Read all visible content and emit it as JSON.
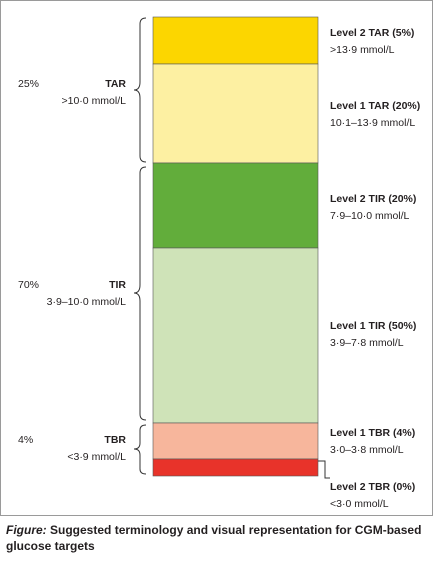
{
  "left_groups": [
    {
      "percent": "25%",
      "label": "TAR",
      "range": ">10·0 mmol/L"
    },
    {
      "percent": "70%",
      "label": "TIR",
      "range": "3·9–10·0 mmol/L"
    },
    {
      "percent": "4%",
      "label": "TBR",
      "range": "<3·9 mmol/L"
    }
  ],
  "levels": [
    {
      "label": "Level 2 TAR (5%)",
      "range": ">13·9 mmol/L"
    },
    {
      "label": "Level 1 TAR (20%)",
      "range": "10·1–13·9 mmol/L"
    },
    {
      "label": "Level 2 TIR (20%)",
      "range": "7·9–10·0 mmol/L"
    },
    {
      "label": "Level 1 TIR (50%)",
      "range": "3·9–7·8 mmol/L"
    },
    {
      "label": "Level 1 TBR (4%)",
      "range": "3·0–3·8 mmol/L"
    },
    {
      "label": "Level 2 TBR (0%)",
      "range": "<3·0 mmol/L"
    }
  ],
  "caption": {
    "label": "Figure:",
    "text": "Suggested terminology and visual representation for CGM-based glucose targets"
  }
}
